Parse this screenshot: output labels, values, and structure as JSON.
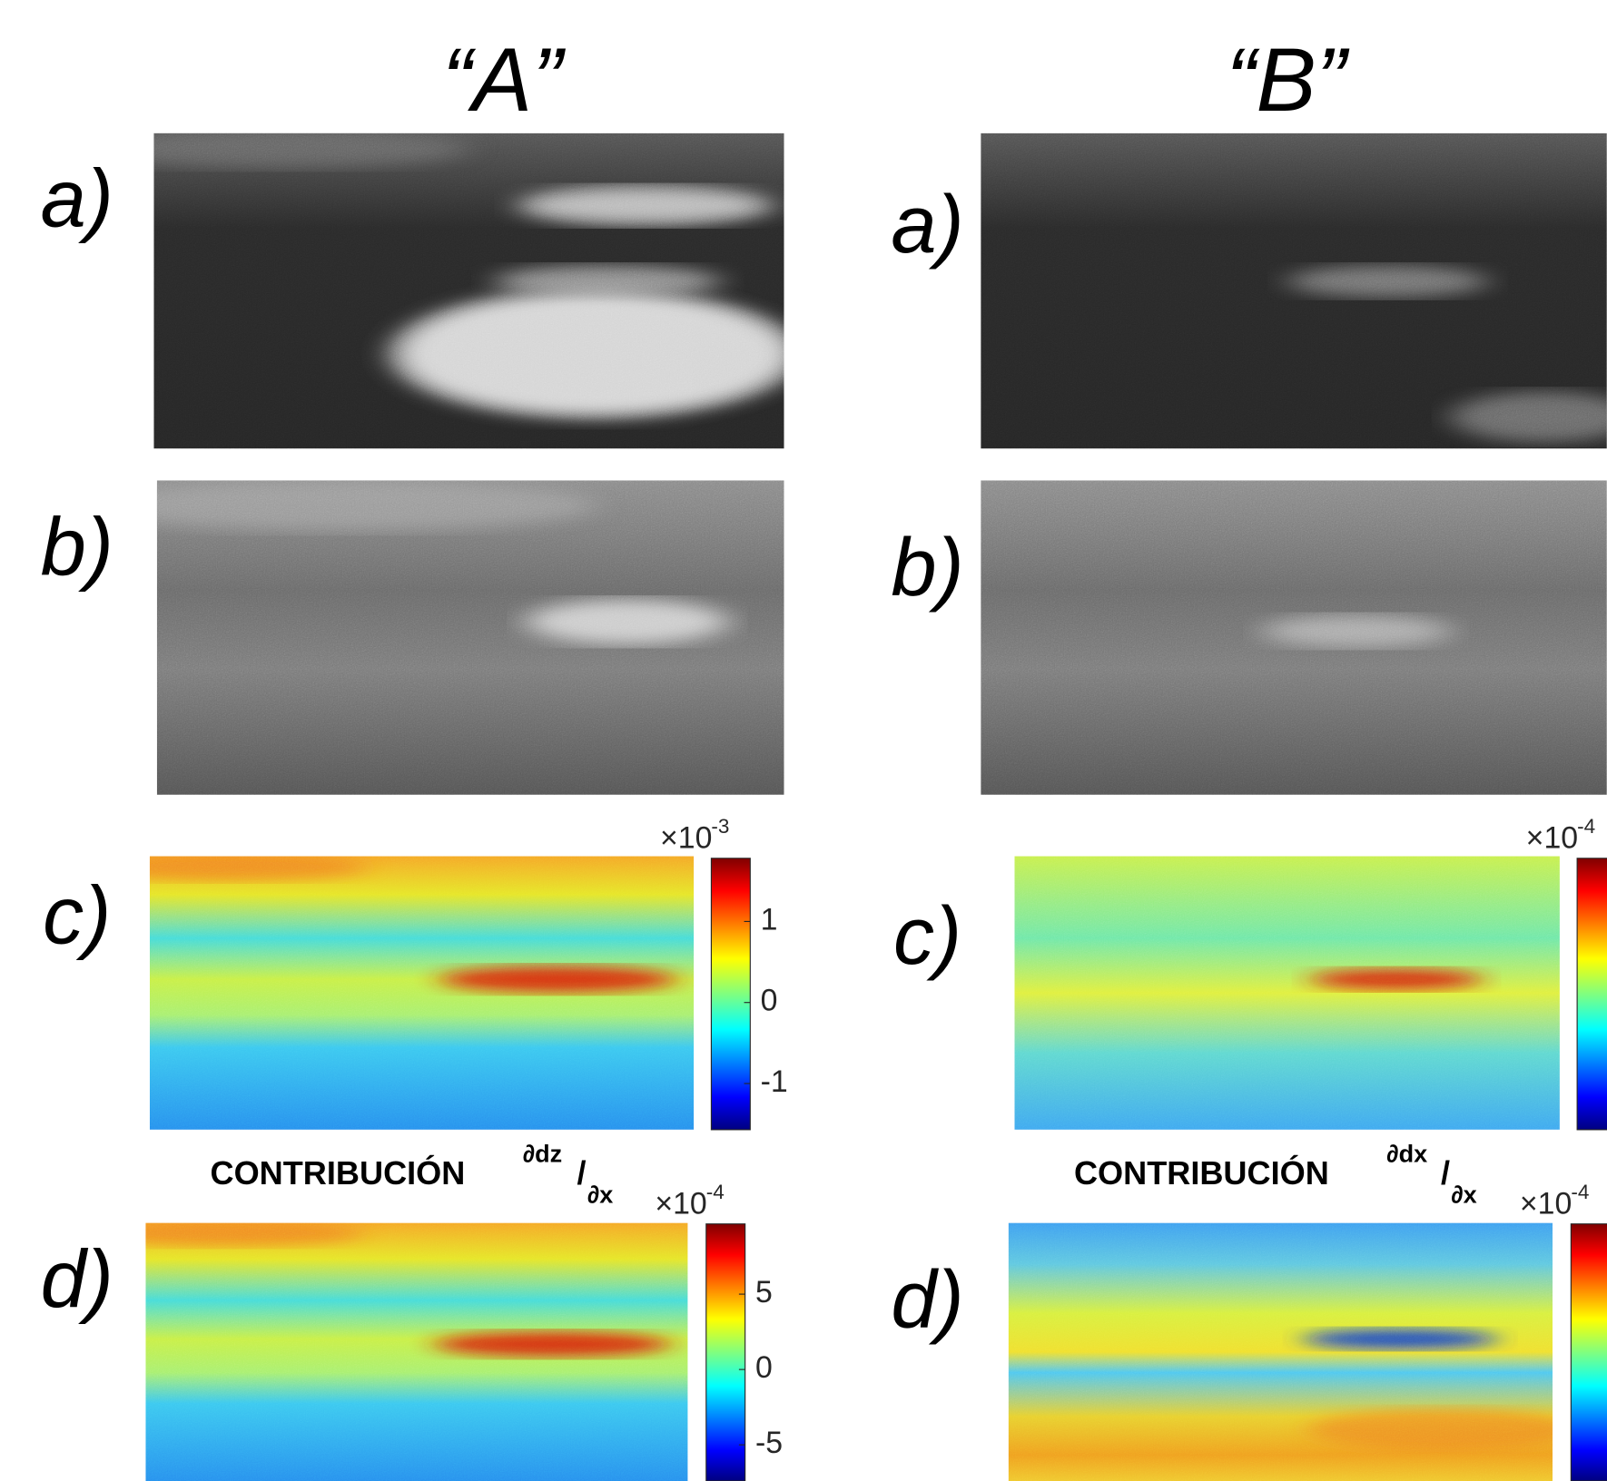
{
  "columns": [
    {
      "heading": "“A”",
      "panels": [
        {
          "label": "a)"
        },
        {
          "label": "b)"
        },
        {
          "label": "c)",
          "colorbar": {
            "multiplier": "×10",
            "exponent": "-3",
            "clim": [
              -1.57,
              1.78
            ],
            "ticks": [
              -1,
              0,
              1
            ]
          }
        },
        {
          "label": "d)",
          "title": {
            "text": "CONTRIBUCIÓN",
            "numerator": "∂dz",
            "slash": "/",
            "denominator": "∂x"
          },
          "colorbar": {
            "multiplier": "×10",
            "exponent": "-4",
            "clim": [
              -7.4,
              9.66
            ],
            "ticks": [
              -5,
              0,
              5
            ]
          }
        }
      ]
    },
    {
      "heading": "“B”",
      "panels": [
        {
          "label": "a)"
        },
        {
          "label": "b)"
        },
        {
          "label": "c)",
          "colorbar": {
            "multiplier": "×10",
            "exponent": "-4"
          }
        },
        {
          "label": "d)",
          "title": {
            "text": "CONTRIBUCIÓN",
            "numerator": "∂dx",
            "slash": "/",
            "denominator": "∂x"
          },
          "colorbar": {
            "multiplier": "×10",
            "exponent": "-4"
          }
        }
      ]
    }
  ]
}
